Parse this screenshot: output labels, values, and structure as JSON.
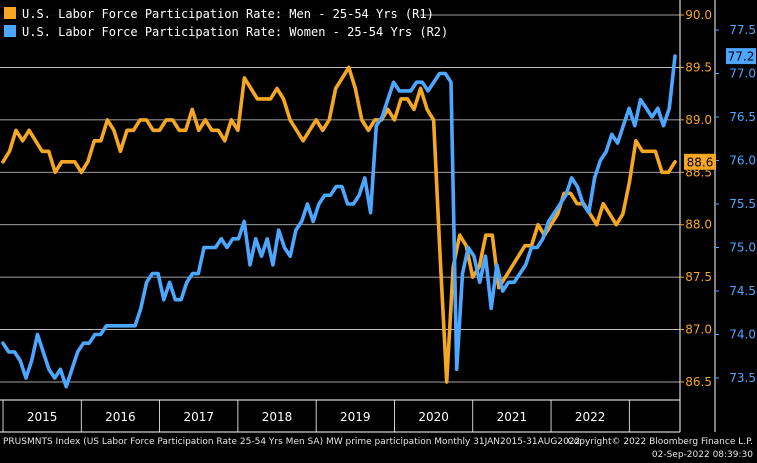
{
  "chart_data": {
    "type": "line",
    "legend": "top-left",
    "grid": true,
    "x_tick_labels": [
      "2015",
      "2016",
      "2017",
      "2018",
      "2019",
      "2020",
      "2021",
      "2022"
    ],
    "x_range": [
      "2015-01",
      "2022-07"
    ],
    "axis_r1": {
      "side": "right",
      "ylim": [
        86.4,
        90.1
      ],
      "ticks": [
        "90.0",
        "89.5",
        "89.0",
        "88.5",
        "88.0",
        "87.5",
        "87.0",
        "86.5"
      ]
    },
    "axis_r2": {
      "side": "right",
      "ylim": [
        73.2,
        78.3
      ],
      "ticks": [
        "77.5",
        "77.0",
        "76.5",
        "76.0",
        "75.5",
        "75.0",
        "74.5",
        "74.0",
        "73.5"
      ]
    },
    "series": [
      {
        "name": "U.S. Labor Force Participation Rate: Men - 25-54 Yrs (R1)",
        "axis": "R1",
        "color": "#f5a623",
        "last_value_label": "88.6",
        "values": [
          88.6,
          88.7,
          88.9,
          88.8,
          88.9,
          88.8,
          88.7,
          88.7,
          88.5,
          88.6,
          88.6,
          88.6,
          88.5,
          88.6,
          88.8,
          88.8,
          89.0,
          88.9,
          88.7,
          88.9,
          88.9,
          89.0,
          89.0,
          88.9,
          88.9,
          89.0,
          89.0,
          88.9,
          88.9,
          89.1,
          88.9,
          89.0,
          88.9,
          88.9,
          88.8,
          89.0,
          88.9,
          89.4,
          89.3,
          89.2,
          89.2,
          89.2,
          89.3,
          89.2,
          89.0,
          88.9,
          88.8,
          88.9,
          89.0,
          88.9,
          89.0,
          89.3,
          89.4,
          89.5,
          89.3,
          89.0,
          88.9,
          89.0,
          89.0,
          89.1,
          89.0,
          89.2,
          89.2,
          89.1,
          89.3,
          89.1,
          89.0,
          87.7,
          86.5,
          87.6,
          87.9,
          87.8,
          87.5,
          87.6,
          87.9,
          87.9,
          87.4,
          87.5,
          87.6,
          87.7,
          87.8,
          87.8,
          88.0,
          87.9,
          88.0,
          88.1,
          88.3,
          88.3,
          88.2,
          88.2,
          88.1,
          88.0,
          88.2,
          88.1,
          88.0,
          88.1,
          88.4,
          88.8,
          88.7,
          88.7,
          88.7,
          88.5,
          88.5,
          88.6
        ]
      },
      {
        "name": "U.S. Labor Force Participation Rate: Women - 25-54 Yrs (R2)",
        "axis": "R2",
        "color": "#4da6ff",
        "last_value_label": "77.2",
        "values": [
          73.9,
          73.8,
          73.8,
          73.7,
          73.5,
          73.7,
          74.0,
          73.8,
          73.6,
          73.5,
          73.6,
          73.4,
          73.6,
          73.8,
          73.9,
          73.9,
          74.0,
          74.0,
          74.1,
          74.1,
          74.1,
          74.1,
          74.1,
          74.1,
          74.3,
          74.6,
          74.7,
          74.7,
          74.4,
          74.6,
          74.4,
          74.4,
          74.6,
          74.7,
          74.7,
          75.0,
          75.0,
          75.0,
          75.1,
          75.0,
          75.1,
          75.1,
          75.3,
          74.8,
          75.1,
          74.9,
          75.1,
          74.8,
          75.2,
          75.0,
          74.9,
          75.2,
          75.3,
          75.5,
          75.3,
          75.5,
          75.6,
          75.6,
          75.7,
          75.7,
          75.5,
          75.5,
          75.6,
          75.8,
          75.4,
          76.4,
          76.5,
          76.7,
          76.9,
          76.8,
          76.8,
          76.8,
          76.9,
          76.9,
          76.8,
          76.9,
          77.0,
          77.0,
          76.9,
          73.6,
          74.7,
          75.0,
          74.9,
          74.6,
          74.9,
          74.3,
          74.8,
          74.5,
          74.6,
          74.6,
          74.7,
          74.8,
          75.0,
          75.0,
          75.1,
          75.3,
          75.4,
          75.5,
          75.6,
          75.8,
          75.7,
          75.5,
          75.4,
          75.8,
          76.0,
          76.1,
          76.3,
          76.2,
          76.4,
          76.6,
          76.4,
          76.7,
          76.6,
          76.5,
          76.6,
          76.4,
          76.6,
          77.2
        ]
      }
    ]
  },
  "footer": {
    "left": "PRUSMNTS Index (US Labor Force Participation Rate 25-54 Yrs Men SA) MW prime participation  Monthly 31JAN2015-31AUG2022",
    "copyright": "Copyright© 2022 Bloomberg Finance L.P.",
    "timestamp": "02-Sep-2022 08:39:30"
  }
}
